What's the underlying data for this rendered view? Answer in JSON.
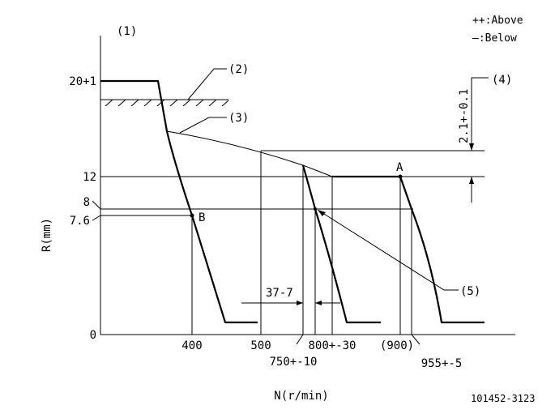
{
  "legend": {
    "above": "++:Above",
    "below": "—:Below"
  },
  "callouts": {
    "c1": "(1)",
    "c2": "(2)",
    "c3": "(3)",
    "c4": "(4)",
    "c5": "(5)"
  },
  "y_axis": {
    "label": "R(mm)",
    "ticks": [
      "20+1",
      "12",
      "8",
      "7.6",
      "0"
    ]
  },
  "x_axis": {
    "label": "N(r/min)",
    "ticks": [
      "400",
      "500",
      "750+-10",
      "800+-30",
      "(900)",
      "955+-5"
    ]
  },
  "annotations": {
    "point_a": "A",
    "point_b": "B",
    "dim_37": "37-7",
    "dim_21": "2.1+-0.1"
  },
  "part_number": "101452-3123"
}
